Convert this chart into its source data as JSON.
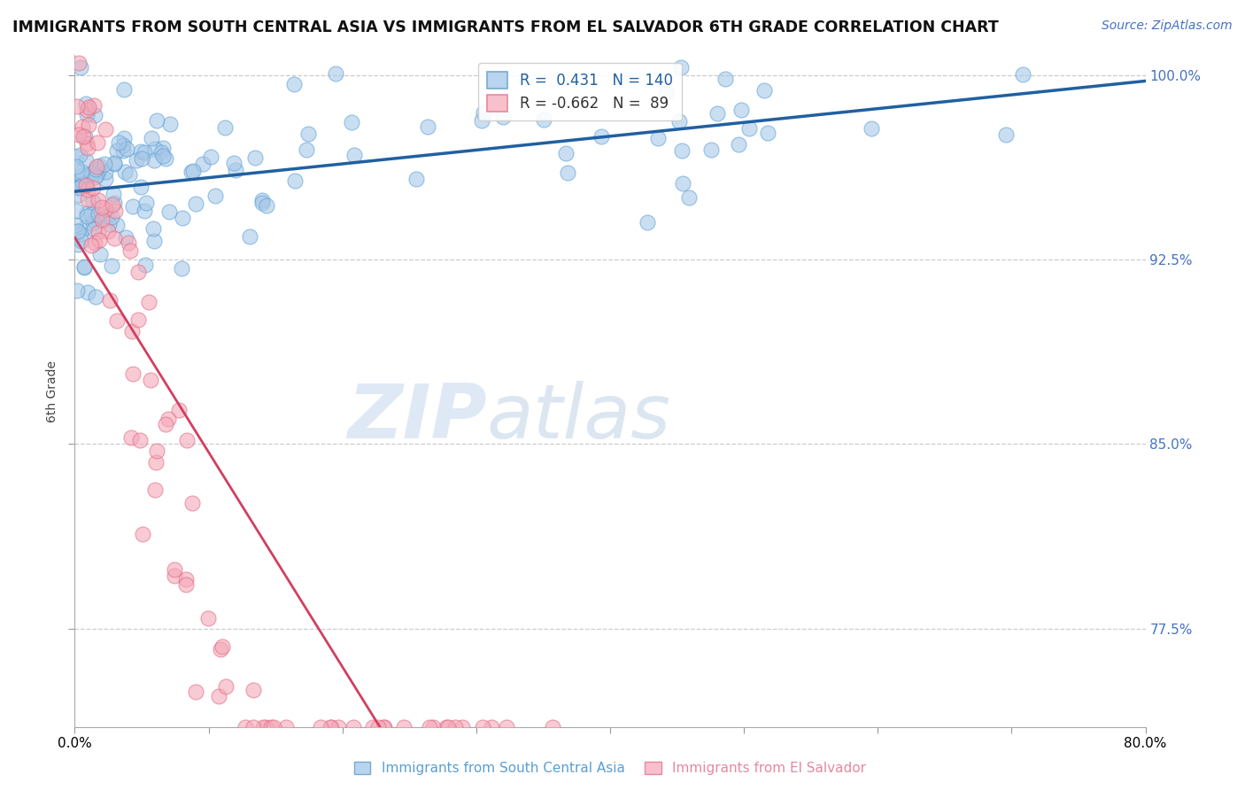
{
  "title": "IMMIGRANTS FROM SOUTH CENTRAL ASIA VS IMMIGRANTS FROM EL SALVADOR 6TH GRADE CORRELATION CHART",
  "source": "Source: ZipAtlas.com",
  "ylabel": "6th Grade",
  "legend_blue_R": 0.431,
  "legend_blue_N": 140,
  "legend_pink_R": -0.662,
  "legend_pink_N": 89,
  "blue_color": "#a8c8e8",
  "blue_edge_color": "#5a9fd4",
  "pink_color": "#f4a8b8",
  "pink_edge_color": "#e06880",
  "blue_line_color": "#2060a0",
  "pink_line_color": "#d04060",
  "watermark_zip_color": "#c8d8ec",
  "watermark_atlas_color": "#b8cce0",
  "background_color": "#ffffff",
  "title_fontsize": 12.5,
  "source_fontsize": 10,
  "legend_fontsize": 12,
  "ylabel_fontsize": 10,
  "tick_fontsize": 11,
  "right_tick_color": "#4472c4",
  "xlim": [
    0.0,
    0.8
  ],
  "ylim": [
    0.735,
    1.008
  ],
  "y_ticks": [
    0.775,
    0.85,
    0.925,
    1.0
  ],
  "y_tick_labels": [
    "77.5%",
    "85.0%",
    "92.5%",
    "100.0%"
  ],
  "x_ticks": [
    0.0,
    0.1,
    0.2,
    0.3,
    0.4,
    0.5,
    0.6,
    0.7,
    0.8
  ],
  "x_tick_labels_show": [
    "0.0%",
    "",
    "",
    "",
    "",
    "",
    "",
    "",
    "80.0%"
  ],
  "seed": 42
}
